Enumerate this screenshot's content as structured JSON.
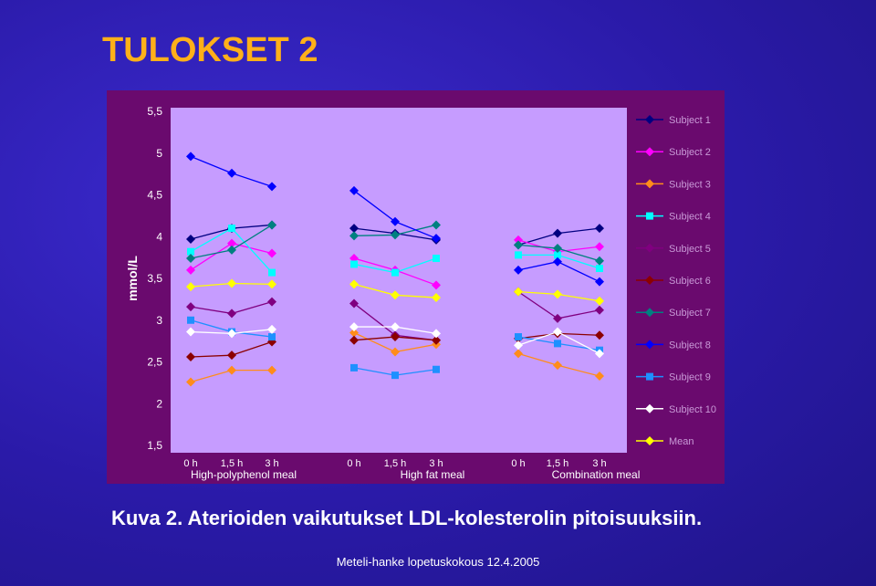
{
  "slide": {
    "title": "TULOKSET 2",
    "caption": "Kuva 2. Aterioiden vaikutukset LDL-kolesterolin pitoisuuksiin.",
    "footer": "Meteli-hanke lopetuskokous 12.4.2005"
  },
  "chart_data": {
    "type": "line",
    "ylabel": "mmol/L",
    "ylim": [
      1.5,
      5.5
    ],
    "yticks": [
      "1,5",
      "2",
      "2,5",
      "3",
      "3,5",
      "4",
      "4,5",
      "5",
      "5,5"
    ],
    "ytick_values": [
      1.5,
      2,
      2.5,
      3,
      3.5,
      4,
      4.5,
      5,
      5.5
    ],
    "grid": false,
    "legend_placement": "right",
    "x_ticks": [
      "0 h",
      "1,5 h",
      "3 h",
      "0 h",
      "1,5 h",
      "3 h",
      "0 h",
      "1,5 h",
      "3 h"
    ],
    "groups": [
      "High-polyphenol meal",
      "High fat meal",
      "Combination meal"
    ],
    "series": [
      {
        "name": "Subject 1",
        "color": "#000080",
        "marker": "diamond",
        "values": [
          [
            3.97,
            4.1,
            4.14
          ],
          [
            4.1,
            4.04,
            3.96
          ],
          [
            3.9,
            4.04,
            4.1
          ]
        ]
      },
      {
        "name": "Subject 2",
        "color": "#ff00ff",
        "marker": "diamond",
        "values": [
          [
            3.6,
            3.92,
            3.8
          ],
          [
            3.74,
            3.6,
            3.42
          ],
          [
            3.96,
            3.82,
            3.88
          ]
        ]
      },
      {
        "name": "Subject 3",
        "color": "#ff8c1a",
        "marker": "diamond",
        "values": [
          [
            2.26,
            2.4,
            2.4
          ],
          [
            2.85,
            2.62,
            2.71
          ],
          [
            2.6,
            2.46,
            2.33
          ]
        ]
      },
      {
        "name": "Subject 4",
        "color": "#00ffff",
        "marker": "square",
        "values": [
          [
            3.82,
            4.1,
            3.57
          ],
          [
            3.67,
            3.57,
            3.74
          ],
          [
            3.78,
            3.78,
            3.62
          ]
        ]
      },
      {
        "name": "Subject 5",
        "color": "#800080",
        "marker": "diamond",
        "values": [
          [
            3.16,
            3.08,
            3.22
          ],
          [
            3.2,
            2.82,
            2.76
          ],
          [
            3.34,
            3.02,
            3.12
          ]
        ]
      },
      {
        "name": "Subject 6",
        "color": "#8b0000",
        "marker": "diamond",
        "values": [
          [
            2.56,
            2.58,
            2.74
          ],
          [
            2.76,
            2.8,
            2.76
          ],
          [
            2.78,
            2.84,
            2.82
          ]
        ]
      },
      {
        "name": "Subject 7",
        "color": "#008080",
        "marker": "diamond",
        "values": [
          [
            3.74,
            3.84,
            4.14
          ],
          [
            4.01,
            4.02,
            4.14
          ],
          [
            3.9,
            3.86,
            3.71
          ]
        ]
      },
      {
        "name": "Subject 8",
        "color": "#0000ff",
        "marker": "diamond",
        "values": [
          [
            4.96,
            4.76,
            4.6
          ],
          [
            4.55,
            4.18,
            3.98
          ],
          [
            3.6,
            3.7,
            3.46
          ]
        ]
      },
      {
        "name": "Subject 9",
        "color": "#1e90ff",
        "marker": "square",
        "values": [
          [
            3.0,
            2.86,
            2.8
          ],
          [
            2.43,
            2.34,
            2.41
          ],
          [
            2.8,
            2.72,
            2.64
          ]
        ]
      },
      {
        "name": "Subject 10",
        "color": "#ffffff",
        "marker": "diamond",
        "values": [
          [
            2.86,
            2.84,
            2.89
          ],
          [
            2.92,
            2.92,
            2.84
          ],
          [
            2.7,
            2.86,
            2.6
          ]
        ]
      },
      {
        "name": "Mean",
        "color": "#ffff00",
        "marker": "diamond",
        "values": [
          [
            3.4,
            3.44,
            3.43
          ],
          [
            3.43,
            3.3,
            3.27
          ],
          [
            3.34,
            3.31,
            3.23
          ]
        ]
      }
    ]
  }
}
